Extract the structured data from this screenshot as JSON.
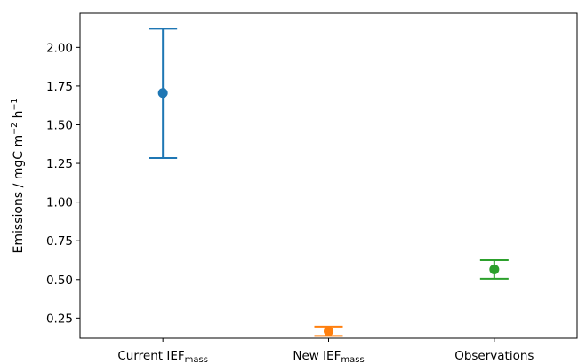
{
  "chart_data": {
    "type": "scatter",
    "ylabel": {
      "prefix": "Emissions / mgC m",
      "sup1": "−2",
      "mid": " h",
      "sup2": "−1"
    },
    "ylim": [
      0.12,
      2.22
    ],
    "y_ticks": [
      "0.25",
      "0.50",
      "0.75",
      "1.00",
      "1.25",
      "1.50",
      "1.75",
      "2.00"
    ],
    "grid": false,
    "categories": [
      {
        "base": "Current IEF",
        "sub": "mass"
      },
      {
        "base": "New IEF",
        "sub": "mass"
      },
      {
        "base": "Observations",
        "sub": ""
      }
    ],
    "series": [
      {
        "category": 0,
        "value": 1.705,
        "err_low": 1.285,
        "err_high": 2.12,
        "color": "#1f77b4"
      },
      {
        "category": 1,
        "value": 0.165,
        "err_low": 0.135,
        "err_high": 0.195,
        "color": "#ff7f0e"
      },
      {
        "category": 2,
        "value": 0.565,
        "err_low": 0.505,
        "err_high": 0.625,
        "color": "#2ca02c"
      }
    ]
  }
}
